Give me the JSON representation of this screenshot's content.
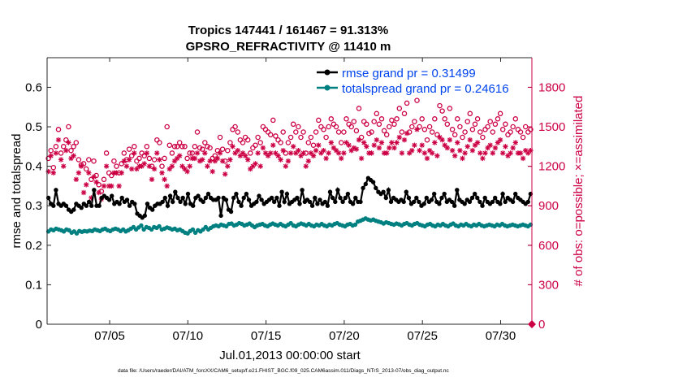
{
  "chart_data": {
    "type": "line",
    "title": "Tropics 147441 / 161467 = 91.313%",
    "subtitle": "GPSRO_REFRACTIVITY @ 11410 m",
    "xlabel": "Jul.01,2013 00:00:00 start",
    "ylabel": "rmse and totalspread",
    "y2label": "# of obs: o=possible; ×=assimilated",
    "footnote": "data file: /Users/raeder/DAI/ATM_forcXX/CAM6_setup/f.e21.FHIST_BGC.f09_025.CAM6assim.011/Diags_NTrS_2013-07/obs_diag_output.nc",
    "x_range_days": [
      1.0,
      32.0
    ],
    "x_ticks": [
      5,
      10,
      15,
      20,
      25,
      30
    ],
    "x_tick_labels": [
      "07/05",
      "07/10",
      "07/15",
      "07/20",
      "07/25",
      "07/30"
    ],
    "ylim": [
      0,
      0.675
    ],
    "y_ticks": [
      0,
      0.1,
      0.2,
      0.3,
      0.4,
      0.5,
      0.6
    ],
    "y_tick_labels": [
      "0",
      "0.1",
      "0.2",
      "0.3",
      "0.4",
      "0.5",
      "0.6"
    ],
    "y2lim": [
      0,
      2025
    ],
    "y2_ticks": [
      0,
      300,
      600,
      900,
      1200,
      1500,
      1800
    ],
    "y2_tick_labels": [
      "0",
      "300",
      "600",
      "900",
      "1200",
      "1500",
      "1800"
    ],
    "grid": false,
    "legend_position": "top-right",
    "colors": {
      "rmse": "#000000",
      "totalspread": "#008080",
      "obs": "#cc0044",
      "rmse_legend_text": "#0044ee",
      "spread_legend_text": "#0044ee"
    },
    "series": [
      {
        "name": "rmse grand pr = 0.31499",
        "axis": "left",
        "marker": "dot-line",
        "values": [
          0.32,
          0.305,
          0.3,
          0.34,
          0.305,
          0.3,
          0.305,
          0.3,
          0.29,
          0.285,
          0.29,
          0.305,
          0.3,
          0.295,
          0.305,
          0.3,
          0.31,
          0.3,
          0.34,
          0.3,
          0.3,
          0.32,
          0.325,
          0.32,
          0.315,
          0.325,
          0.305,
          0.31,
          0.305,
          0.32,
          0.31,
          0.315,
          0.3,
          0.31,
          0.305,
          0.28,
          0.275,
          0.27,
          0.275,
          0.305,
          0.295,
          0.29,
          0.3,
          0.305,
          0.305,
          0.31,
          0.32,
          0.3,
          0.325,
          0.31,
          0.335,
          0.32,
          0.31,
          0.32,
          0.305,
          0.33,
          0.305,
          0.3,
          0.32,
          0.325,
          0.315,
          0.31,
          0.32,
          0.33,
          0.32,
          0.315,
          0.315,
          0.32,
          0.275,
          0.32,
          0.315,
          0.29,
          0.285,
          0.32,
          0.33,
          0.31,
          0.3,
          0.32,
          0.33,
          0.315,
          0.3,
          0.305,
          0.31,
          0.325,
          0.315,
          0.305,
          0.31,
          0.315,
          0.32,
          0.31,
          0.32,
          0.3,
          0.335,
          0.31,
          0.33,
          0.305,
          0.31,
          0.315,
          0.32,
          0.305,
          0.34,
          0.31,
          0.315,
          0.31,
          0.3,
          0.32,
          0.305,
          0.315,
          0.305,
          0.31,
          0.3,
          0.335,
          0.32,
          0.31,
          0.34,
          0.32,
          0.31,
          0.32,
          0.33,
          0.31,
          0.305,
          0.32,
          0.31,
          0.31,
          0.345,
          0.355,
          0.37,
          0.365,
          0.36,
          0.345,
          0.335,
          0.33,
          0.335,
          0.32,
          0.34,
          0.31,
          0.32,
          0.315,
          0.31,
          0.315,
          0.31,
          0.335,
          0.32,
          0.305,
          0.31,
          0.32,
          0.31,
          0.3,
          0.305,
          0.32,
          0.31,
          0.315,
          0.33,
          0.31,
          0.305,
          0.32,
          0.33,
          0.31,
          0.315,
          0.31,
          0.3,
          0.34,
          0.315,
          0.31,
          0.305,
          0.315,
          0.31,
          0.32,
          0.33,
          0.32,
          0.31,
          0.3,
          0.32,
          0.31,
          0.305,
          0.31,
          0.32,
          0.31,
          0.305,
          0.33,
          0.31,
          0.32,
          0.315,
          0.31,
          0.33,
          0.32,
          0.315,
          0.31,
          0.305,
          0.31,
          0.33
        ]
      },
      {
        "name": "totalspread grand pr = 0.24616",
        "axis": "left",
        "marker": "dot-line",
        "values": [
          0.235,
          0.24,
          0.238,
          0.242,
          0.24,
          0.238,
          0.235,
          0.24,
          0.238,
          0.232,
          0.235,
          0.23,
          0.236,
          0.234,
          0.236,
          0.235,
          0.237,
          0.236,
          0.24,
          0.238,
          0.236,
          0.24,
          0.242,
          0.238,
          0.236,
          0.24,
          0.242,
          0.24,
          0.236,
          0.24,
          0.235,
          0.238,
          0.242,
          0.246,
          0.24,
          0.245,
          0.25,
          0.24,
          0.246,
          0.244,
          0.24,
          0.246,
          0.244,
          0.248,
          0.24,
          0.242,
          0.245,
          0.243,
          0.24,
          0.242,
          0.238,
          0.24,
          0.236,
          0.232,
          0.23,
          0.236,
          0.24,
          0.232,
          0.238,
          0.235,
          0.24,
          0.246,
          0.24,
          0.244,
          0.248,
          0.25,
          0.248,
          0.252,
          0.25,
          0.248,
          0.254,
          0.255,
          0.25,
          0.252,
          0.256,
          0.254,
          0.25,
          0.252,
          0.255,
          0.25,
          0.246,
          0.25,
          0.252,
          0.254,
          0.25,
          0.248,
          0.252,
          0.255,
          0.252,
          0.25,
          0.254,
          0.25,
          0.248,
          0.252,
          0.256,
          0.25,
          0.248,
          0.252,
          0.255,
          0.253,
          0.25,
          0.254,
          0.25,
          0.248,
          0.252,
          0.25,
          0.254,
          0.25,
          0.248,
          0.252,
          0.25,
          0.254,
          0.256,
          0.252,
          0.25,
          0.248,
          0.252,
          0.254,
          0.25,
          0.252,
          0.26,
          0.262,
          0.265,
          0.268,
          0.265,
          0.263,
          0.265,
          0.262,
          0.26,
          0.258,
          0.255,
          0.258,
          0.256,
          0.254,
          0.252,
          0.255,
          0.253,
          0.25,
          0.254,
          0.256,
          0.252,
          0.25,
          0.254,
          0.256,
          0.252,
          0.25,
          0.248,
          0.252,
          0.254,
          0.25,
          0.248,
          0.252,
          0.25,
          0.254,
          0.25,
          0.248,
          0.252,
          0.255,
          0.25,
          0.248,
          0.252,
          0.25,
          0.254,
          0.25,
          0.248,
          0.252,
          0.25,
          0.254,
          0.25,
          0.248,
          0.25,
          0.252,
          0.25,
          0.248,
          0.252,
          0.25,
          0.254,
          0.25,
          0.248,
          0.25,
          0.252,
          0.25,
          0.248,
          0.25,
          0.252,
          0.25,
          0.248,
          0.252
        ]
      },
      {
        "name": "possible",
        "axis": "right",
        "marker": "circle",
        "values": [
          1260,
          1320,
          1190,
          1350,
          1480,
          1300,
          1350,
          1400,
          1500,
          1320,
          1350,
          1380,
          1250,
          1210,
          1220,
          1180,
          1250,
          1100,
          1240,
          1130,
          1060,
          1010,
          1100,
          1300,
          1150,
          1130,
          1240,
          1200,
          1150,
          1220,
          1300,
          1250,
          1330,
          1280,
          1350,
          1240,
          1260,
          1300,
          1280,
          1350,
          1260,
          1200,
          1250,
          1400,
          1380,
          1200,
          1260,
          1500,
          1360,
          1300,
          1350,
          1350,
          1380,
          1350,
          1350,
          1260,
          1300,
          1300,
          1350,
          1460,
          1340,
          1330,
          1380,
          1350,
          1340,
          1260,
          1280,
          1320,
          1420,
          1330,
          1240,
          1320,
          1380,
          1480,
          1500,
          1460,
          1400,
          1380,
          1420,
          1400,
          1300,
          1340,
          1360,
          1420,
          1380,
          1500,
          1480,
          1460,
          1440,
          1550,
          1430,
          1400,
          1380,
          1460,
          1300,
          1380,
          1420,
          1520,
          1460,
          1500,
          1420,
          1460,
          1300,
          1380,
          1420,
          1360,
          1460,
          1550,
          1500,
          1480,
          1420,
          1500,
          1560,
          1520,
          1500,
          1460,
          1380,
          1460,
          1560,
          1520,
          1500,
          1540,
          1470,
          1640,
          1420,
          1540,
          1520,
          1450,
          1460,
          1540,
          1600,
          1520,
          1560,
          1470,
          1440,
          1500,
          1550,
          1520,
          1560,
          1640,
          1460,
          1600,
          1680,
          1460,
          1500,
          1540,
          1700,
          1500,
          1560,
          1480,
          1400,
          1500,
          1460,
          1560,
          1440,
          1660,
          1620,
          1560,
          1520,
          1640,
          1480,
          1440,
          1560,
          1500,
          1420,
          1460,
          1540,
          1600,
          1480,
          1520,
          1560,
          1460,
          1420,
          1480,
          1500,
          1540,
          1460,
          1520,
          1560,
          1600,
          1480,
          1520,
          1440,
          1460,
          1500,
          1560,
          1480,
          1460,
          1420,
          1500,
          1460,
          1480
        ]
      },
      {
        "name": "assimilated",
        "axis": "right",
        "marker": "asterisk",
        "values": [
          1160,
          1280,
          1150,
          1300,
          1400,
          1250,
          1200,
          1320,
          1380,
          1260,
          1280,
          1100,
          1150,
          1200,
          1000,
          1060,
          1150,
          960,
          1120,
          1080,
          1000,
          950,
          1050,
          1200,
          1050,
          1050,
          1150,
          1150,
          1050,
          1150,
          1240,
          1200,
          1250,
          1180,
          1300,
          1180,
          1200,
          1200,
          1220,
          1300,
          1200,
          1100,
          1180,
          1300,
          1250,
          1150,
          1100,
          1050,
          1180,
          1200,
          1240,
          1260,
          1280,
          1200,
          1180,
          1160,
          1200,
          1260,
          1260,
          1300,
          1240,
          1250,
          1300,
          1200,
          1240,
          1160,
          1240,
          1260,
          1300,
          1240,
          1140,
          1200,
          1250,
          1350,
          1300,
          1320,
          1280,
          1300,
          1280,
          1250,
          1180,
          1200,
          1220,
          1300,
          1200,
          1340,
          1300,
          1280,
          1300,
          1360,
          1300,
          1280,
          1250,
          1320,
          1200,
          1240,
          1300,
          1350,
          1300,
          1320,
          1280,
          1300,
          1200,
          1240,
          1300,
          1280,
          1320,
          1360,
          1300,
          1320,
          1260,
          1300,
          1380,
          1340,
          1320,
          1300,
          1260,
          1300,
          1380,
          1360,
          1320,
          1340,
          1330,
          1400,
          1260,
          1380,
          1350,
          1300,
          1300,
          1360,
          1400,
          1340,
          1380,
          1300,
          1300,
          1340,
          1380,
          1340,
          1380,
          1420,
          1300,
          1400,
          1450,
          1300,
          1320,
          1360,
          1480,
          1320,
          1360,
          1300,
          1260,
          1320,
          1300,
          1380,
          1280,
          1420,
          1400,
          1360,
          1340,
          1400,
          1320,
          1280,
          1380,
          1320,
          1260,
          1300,
          1350,
          1400,
          1320,
          1360,
          1380,
          1300,
          1260,
          1300,
          1340,
          1360,
          1300,
          1340,
          1380,
          1400,
          1300,
          1350,
          1280,
          1300,
          1340,
          1380,
          1300,
          1300,
          1260,
          1320,
          1300,
          1320
        ]
      }
    ]
  }
}
